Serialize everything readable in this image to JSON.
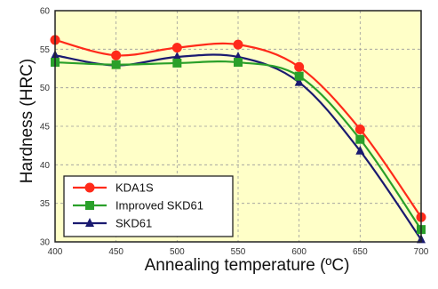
{
  "chart_data": {
    "type": "line",
    "xlabel": "Annealing temperature (ºC)",
    "ylabel": "Hardness (HRC)",
    "x": [
      "400",
      "450",
      "500",
      "550",
      "600",
      "650",
      "700"
    ],
    "x_values": [
      400,
      450,
      500,
      550,
      600,
      650,
      700
    ],
    "xlim": [
      400,
      700
    ],
    "ylim": [
      30,
      60
    ],
    "yticks": [
      30,
      35,
      40,
      45,
      50,
      55,
      60
    ],
    "grid": true,
    "legend_position": "bottom-left",
    "background": "#ffffc8",
    "series": [
      {
        "name": "KDA1S",
        "marker": "circle",
        "color": "#ff2a1a",
        "values": [
          56.2,
          54.2,
          55.2,
          55.6,
          52.7,
          44.6,
          33.2
        ]
      },
      {
        "name": "Improved SKD61",
        "marker": "square",
        "color": "#2aa02a",
        "values": [
          53.3,
          53.0,
          53.2,
          53.3,
          51.5,
          43.3,
          31.6
        ]
      },
      {
        "name": "SKD61",
        "marker": "triangle",
        "color": "#1a1a70",
        "values": [
          54.2,
          52.9,
          54.0,
          54.0,
          50.7,
          41.8,
          30.3
        ]
      }
    ]
  }
}
